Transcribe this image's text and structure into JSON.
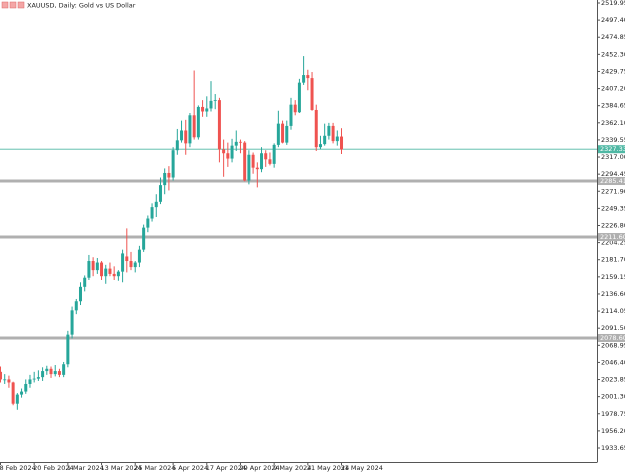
{
  "chart_data": {
    "type": "candlestick",
    "title": "XAUUSD, Daily: Gold vs US Dollar",
    "categories": [
      "8 Feb 2024",
      null,
      null,
      null,
      null,
      null,
      null,
      null,
      "20 Feb 2024",
      null,
      null,
      null,
      null,
      null,
      null,
      null,
      "1 Mar 2024",
      null,
      null,
      null,
      null,
      null,
      null,
      null,
      "13 Mar 2024",
      null,
      null,
      null,
      null,
      null,
      null,
      null,
      "25 Mar 2024",
      null,
      null,
      null,
      null,
      null,
      null,
      null,
      null,
      "5 Apr 2024",
      null,
      null,
      null,
      null,
      null,
      null,
      null,
      "17 Apr 2024",
      null,
      null,
      null,
      null,
      null,
      null,
      null,
      "29 Apr 2024",
      null,
      null,
      null,
      null,
      null,
      null,
      null,
      "9 May 2024",
      null,
      null,
      null,
      null,
      null,
      null,
      null,
      "21 May 2024",
      null,
      null,
      null,
      null,
      null,
      null,
      null,
      "31 May 2024"
    ],
    "open": [
      2034,
      2024,
      2024,
      2020,
      1992,
      2004,
      2008,
      2018,
      2024,
      2025,
      2027,
      2035,
      2038,
      2031,
      2035,
      2030,
      2044,
      2083,
      2115,
      2127,
      2146,
      2158,
      2180,
      2168,
      2178,
      2160,
      2170,
      2163,
      2160,
      2166,
      2186,
      2180,
      2172,
      2178,
      2195,
      2224,
      2236,
      2251,
      2258,
      2280,
      2296,
      2290,
      2326,
      2339,
      2352,
      2335,
      2372,
      2343,
      2383,
      2377,
      2381,
      2391,
      2392,
      2327,
      2322,
      2315,
      2332,
      2337,
      2336,
      2286,
      2320,
      2303,
      2301,
      2322,
      2314,
      2308,
      2333,
      2361,
      2336,
      2358,
      2386,
      2376,
      2415,
      2425,
      2421,
      2379,
      2330,
      2334,
      2345,
      2358,
      2338,
      2344
    ],
    "high": [
      2041,
      2031,
      2029,
      2021,
      2006,
      2012,
      2024,
      2030,
      2034,
      2036,
      2040,
      2042,
      2041,
      2043,
      2038,
      2047,
      2088,
      2120,
      2130,
      2152,
      2161,
      2188,
      2185,
      2184,
      2180,
      2175,
      2178,
      2173,
      2168,
      2195,
      2223,
      2192,
      2180,
      2200,
      2228,
      2240,
      2256,
      2268,
      2290,
      2302,
      2305,
      2330,
      2354,
      2365,
      2366,
      2375,
      2431,
      2385,
      2392,
      2397,
      2417,
      2400,
      2395,
      2340,
      2336,
      2341,
      2352,
      2340,
      2338,
      2326,
      2323,
      2310,
      2330,
      2326,
      2323,
      2335,
      2378,
      2365,
      2365,
      2395,
      2392,
      2420,
      2450,
      2432,
      2429,
      2386,
      2345,
      2361,
      2362,
      2362,
      2352,
      2355
    ],
    "low": [
      2020,
      2018,
      2013,
      1990,
      1984,
      2000,
      2005,
      2013,
      2020,
      2022,
      2022,
      2030,
      2026,
      2028,
      2027,
      2027,
      2040,
      2078,
      2110,
      2122,
      2140,
      2155,
      2160,
      2163,
      2155,
      2150,
      2160,
      2155,
      2154,
      2152,
      2165,
      2168,
      2165,
      2172,
      2192,
      2218,
      2232,
      2238,
      2255,
      2268,
      2273,
      2286,
      2320,
      2336,
      2320,
      2330,
      2340,
      2340,
      2370,
      2370,
      2377,
      2380,
      2310,
      2291,
      2304,
      2310,
      2325,
      2322,
      2285,
      2281,
      2295,
      2277,
      2297,
      2304,
      2306,
      2303,
      2330,
      2335,
      2333,
      2353,
      2372,
      2375,
      2412,
      2405,
      2378,
      2325,
      2327,
      2332,
      2340,
      2335,
      2332,
      2321
    ],
    "close": [
      2024,
      2024,
      2020,
      1992,
      2004,
      2008,
      2018,
      2024,
      2025,
      2027,
      2035,
      2038,
      2031,
      2035,
      2030,
      2044,
      2083,
      2115,
      2127,
      2146,
      2158,
      2180,
      2168,
      2178,
      2160,
      2170,
      2163,
      2160,
      2166,
      2190,
      2180,
      2172,
      2178,
      2195,
      2224,
      2236,
      2251,
      2258,
      2280,
      2296,
      2290,
      2326,
      2339,
      2352,
      2335,
      2372,
      2343,
      2383,
      2377,
      2381,
      2391,
      2392,
      2327,
      2322,
      2315,
      2332,
      2337,
      2336,
      2286,
      2320,
      2303,
      2301,
      2322,
      2314,
      2308,
      2333,
      2361,
      2336,
      2358,
      2386,
      2376,
      2415,
      2425,
      2421,
      2379,
      2330,
      2334,
      2345,
      2358,
      2338,
      2344,
      2327
    ],
    "up_color": "#26a69a",
    "down_color": "#ef5350",
    "ylim": [
      1915.2,
      2523.9
    ],
    "yticks": [
      2519.95,
      {
        "value": 2497.4,
        "label": "2497.40"
      },
      2474.85,
      {
        "value": 2452.3,
        "label": "2452.30"
      },
      2429.75,
      {
        "value": 2407.2,
        "label": "2407.20"
      },
      2384.65,
      {
        "value": 2362.1,
        "label": "2362.10"
      },
      2339.55,
      {
        "value": 2317,
        "label": "2317.00"
      },
      2294.45,
      {
        "value": 2271.9,
        "label": "2271.90"
      },
      2249.35,
      {
        "value": 2226.8,
        "label": "2226.80"
      },
      2204.25,
      {
        "value": 2181.7,
        "label": "2181.70"
      },
      2159.15,
      {
        "value": 2136.6,
        "label": "2136.60"
      },
      2114.05,
      {
        "value": 2091.5,
        "label": "2091.50"
      },
      2068.95,
      {
        "value": 2046.4,
        "label": "2046.40"
      },
      2023.85,
      {
        "value": 2001.3,
        "label": "2001.30"
      },
      1978.75,
      {
        "value": 1956.2,
        "label": "1956.20"
      },
      1933.65
    ],
    "levels": [
      2285.41,
      {
        "value": 2211.6,
        "label": "2211.60"
      },
      {
        "value": 2078.6,
        "label": "2078.60"
      }
    ],
    "level_color": "#b0b0b0",
    "price_line": 2327.33,
    "price_line_color": "#4fb8a4"
  }
}
